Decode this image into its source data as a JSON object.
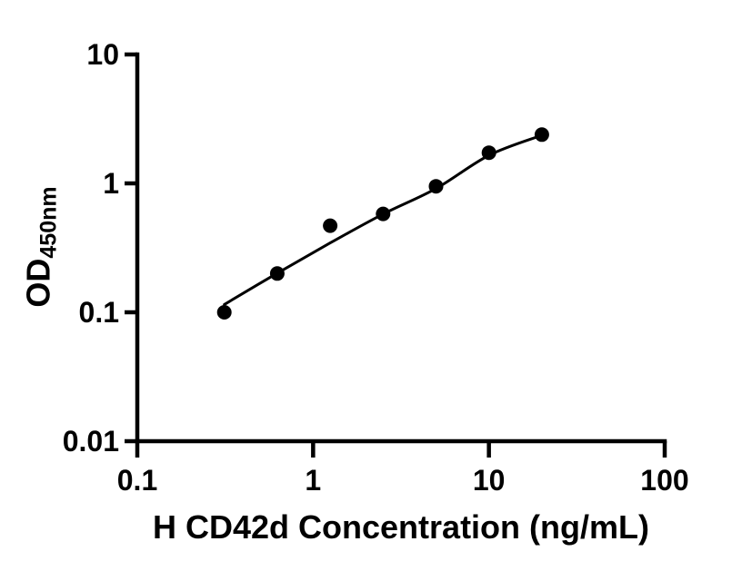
{
  "figure": {
    "background": "#ffffff",
    "ink_color": "#000000"
  },
  "chart_data": {
    "type": "scatter",
    "title": "",
    "xlabel": "H CD42d Concentration (ng/mL)",
    "ylabel_main": "OD",
    "ylabel_sub": "450nm",
    "x_scale": "log10",
    "y_scale": "log10",
    "xlim": [
      0.1,
      100
    ],
    "ylim": [
      0.01,
      10
    ],
    "grid": false,
    "legend": "none",
    "x_ticks": {
      "values": [
        0.1,
        1,
        10,
        100
      ],
      "labels": [
        "0.1",
        "1",
        "10",
        "100"
      ]
    },
    "y_ticks": {
      "values": [
        10,
        1,
        0.1,
        0.01
      ],
      "labels": [
        "10",
        "1",
        "0.1",
        "0.01"
      ]
    },
    "series": [
      {
        "name": "standard-data-points",
        "type": "scatter",
        "marker": "filled-circle",
        "color": "#000000",
        "x": [
          0.3125,
          0.625,
          1.25,
          2.5,
          5,
          10,
          20
        ],
        "y": [
          0.1,
          0.2,
          0.47,
          0.58,
          0.95,
          1.73,
          2.39
        ]
      },
      {
        "name": "fitted-standard-curve",
        "type": "line",
        "color": "#000000",
        "x": [
          0.3125,
          0.625,
          1.25,
          2.5,
          5,
          10,
          20
        ],
        "y": [
          0.115,
          0.201,
          0.345,
          0.578,
          0.912,
          1.65,
          2.36
        ]
      }
    ]
  }
}
